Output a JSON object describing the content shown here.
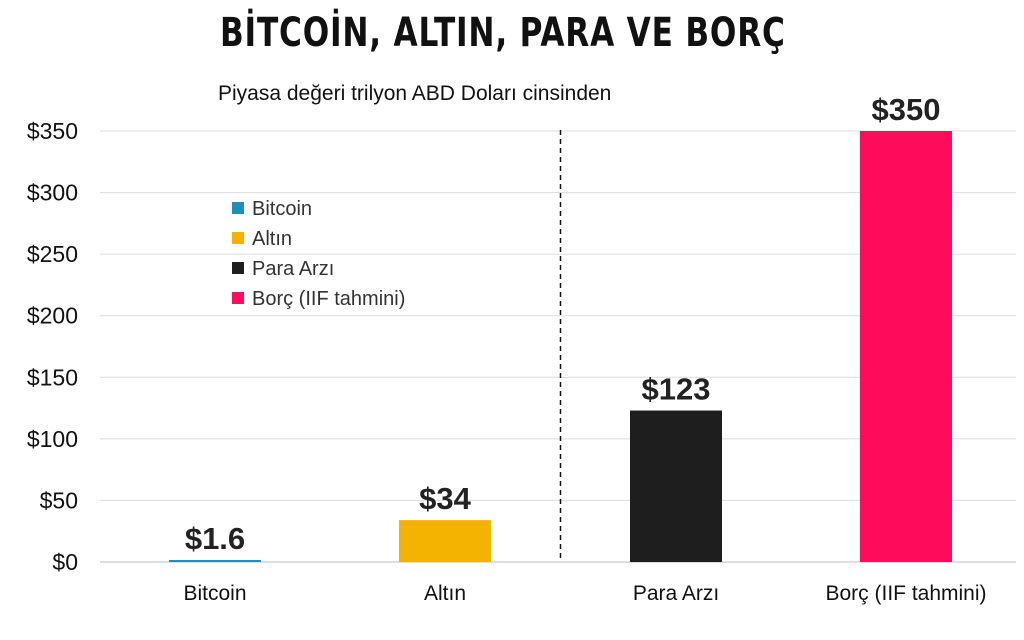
{
  "chart_data": {
    "type": "bar",
    "title": "BİTCOİN, ALTIN, PARA VE BORÇ",
    "subtitle": "Piyasa değeri trilyon ABD Doları cinsinden",
    "categories": [
      "Bitcoin",
      "Altın",
      "Para Arzı",
      "Borç (IIF tahmini)"
    ],
    "values": [
      1.6,
      34,
      123,
      350
    ],
    "data_labels": [
      "$1.6",
      "$34",
      "$123",
      "$350"
    ],
    "colors": [
      "#1f8fb8",
      "#f5b301",
      "#1e1e1e",
      "#ff0b5c"
    ],
    "ylim": [
      0,
      350
    ],
    "yticks": [
      0,
      50,
      100,
      150,
      200,
      250,
      300,
      350
    ],
    "ytick_labels": [
      "$0",
      "$50",
      "$100",
      "$150",
      "$200",
      "$250",
      "$300",
      "$350"
    ],
    "grid": true,
    "divider_after_category": 1,
    "legend": {
      "position": "upper-left",
      "entries": [
        {
          "label": "Bitcoin",
          "color": "#1f8fb8"
        },
        {
          "label": "Altın",
          "color": "#f5b301"
        },
        {
          "label": "Para Arzı",
          "color": "#1e1e1e"
        },
        {
          "label": "Borç (IIF tahmini)",
          "color": "#ff0b5c"
        }
      ]
    }
  }
}
